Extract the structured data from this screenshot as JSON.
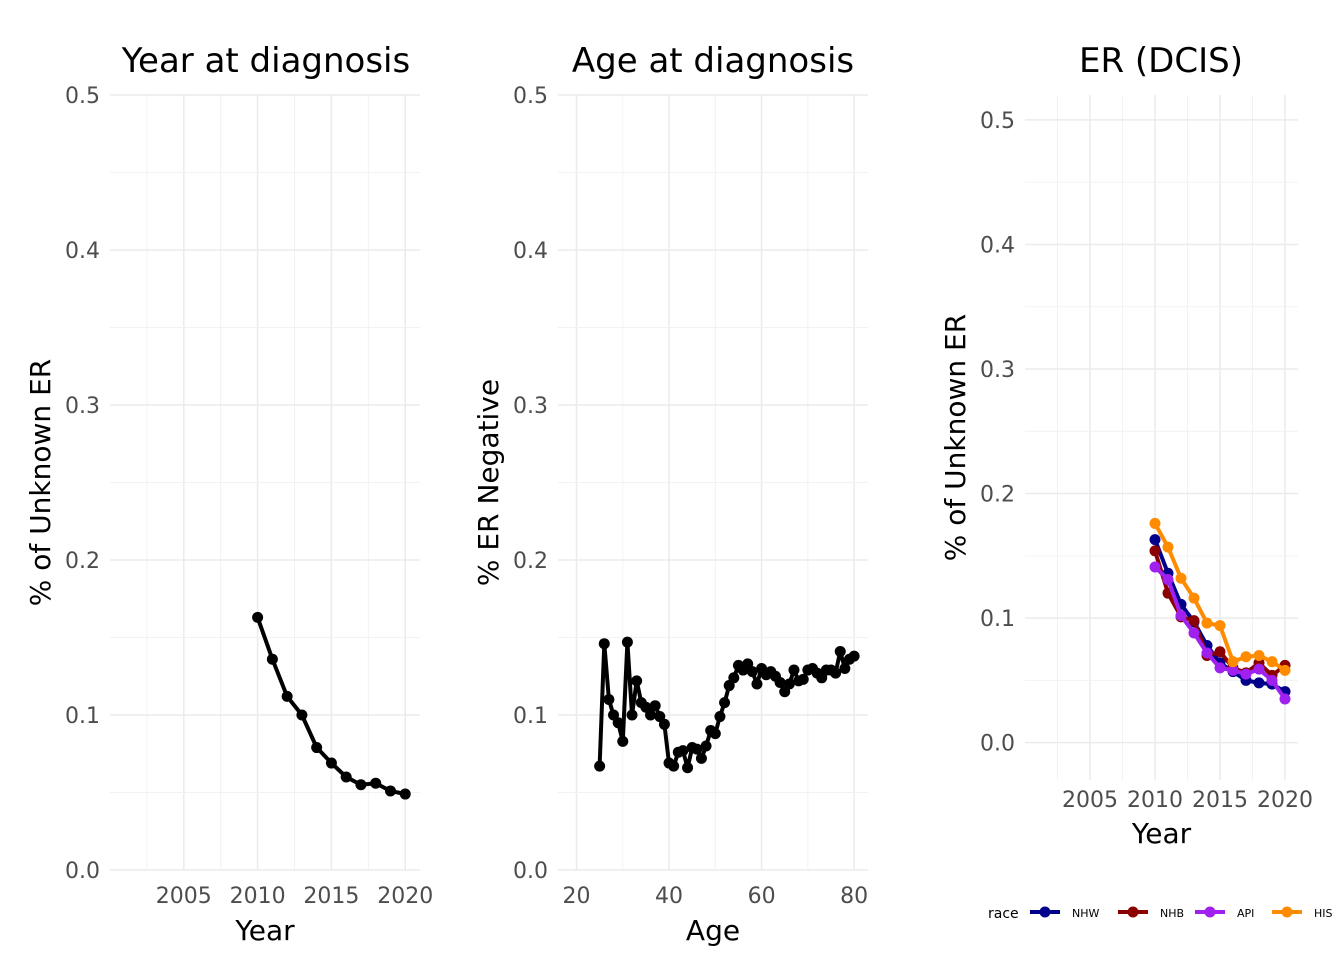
{
  "chart_data": [
    {
      "type": "line",
      "title": "Year at diagnosis",
      "xlabel": "Year",
      "ylabel": "% of Unknown ER",
      "xlim": [
        2000,
        2021
      ],
      "ylim": [
        0,
        0.5
      ],
      "xticks": [
        2005,
        2010,
        2015,
        2020
      ],
      "yticks": [
        0.0,
        0.1,
        0.2,
        0.3,
        0.4,
        0.5
      ],
      "ytick_labels": [
        "0.0",
        "0.1",
        "0.2",
        "0.3",
        "0.4",
        "0.5"
      ],
      "grid": true,
      "series": [
        {
          "color": "#000000",
          "x": [
            2010,
            2011,
            2012,
            2013,
            2014,
            2015,
            2016,
            2017,
            2018,
            2019,
            2020
          ],
          "y": [
            0.163,
            0.136,
            0.112,
            0.1,
            0.079,
            0.069,
            0.06,
            0.055,
            0.056,
            0.051,
            0.049
          ]
        }
      ]
    },
    {
      "type": "line",
      "title": "Age at diagnosis",
      "xlabel": "Age",
      "ylabel": "% ER Negative",
      "xlim": [
        16,
        83
      ],
      "ylim": [
        0,
        0.5
      ],
      "xticks": [
        20,
        40,
        60,
        80
      ],
      "yticks": [
        0.0,
        0.1,
        0.2,
        0.3,
        0.4,
        0.5
      ],
      "ytick_labels": [
        "0.0",
        "0.1",
        "0.2",
        "0.3",
        "0.4",
        "0.5"
      ],
      "grid": true,
      "series": [
        {
          "color": "#000000",
          "x": [
            25,
            26,
            27,
            28,
            29,
            30,
            31,
            32,
            33,
            34,
            35,
            36,
            37,
            38,
            39,
            40,
            41,
            42,
            43,
            44,
            45,
            46,
            47,
            48,
            49,
            50,
            51,
            52,
            53,
            54,
            55,
            56,
            57,
            58,
            59,
            60,
            61,
            62,
            63,
            64,
            65,
            66,
            67,
            68,
            69,
            70,
            71,
            72,
            73,
            74,
            75,
            76,
            77,
            78,
            79,
            80
          ],
          "y": [
            0.067,
            0.146,
            0.11,
            0.1,
            0.095,
            0.083,
            0.147,
            0.1,
            0.122,
            0.108,
            0.105,
            0.1,
            0.106,
            0.099,
            0.094,
            0.069,
            0.067,
            0.076,
            0.077,
            0.066,
            0.079,
            0.078,
            0.072,
            0.08,
            0.09,
            0.088,
            0.099,
            0.108,
            0.119,
            0.124,
            0.132,
            0.129,
            0.133,
            0.128,
            0.12,
            0.13,
            0.126,
            0.128,
            0.125,
            0.121,
            0.115,
            0.12,
            0.129,
            0.122,
            0.123,
            0.129,
            0.13,
            0.127,
            0.124,
            0.129,
            0.129,
            0.127,
            0.141,
            0.13,
            0.136,
            0.138
          ]
        }
      ]
    },
    {
      "type": "line",
      "title": "ER (DCIS)",
      "xlabel": "Year",
      "ylabel": "% of Unknown ER",
      "xlim": [
        2000,
        2021
      ],
      "ylim": [
        -0.03,
        0.52
      ],
      "xticks": [
        2005,
        2010,
        2015,
        2020
      ],
      "yticks": [
        0.0,
        0.1,
        0.2,
        0.3,
        0.4,
        0.5
      ],
      "ytick_labels": [
        "0.0",
        "0.1",
        "0.2",
        "0.3",
        "0.4",
        "0.5"
      ],
      "grid": true,
      "legend": {
        "title": "race",
        "position": "bottom"
      },
      "series": [
        {
          "name": "NHW",
          "color": "#00008b",
          "x": [
            2010,
            2011,
            2012,
            2013,
            2014,
            2015,
            2016,
            2017,
            2018,
            2019,
            2020
          ],
          "y": [
            0.163,
            0.136,
            0.111,
            0.097,
            0.078,
            0.064,
            0.057,
            0.05,
            0.048,
            0.047,
            0.041
          ]
        },
        {
          "name": "NHB",
          "color": "#8b0000",
          "x": [
            2010,
            2011,
            2012,
            2013,
            2014,
            2015,
            2016,
            2017,
            2018,
            2019,
            2020
          ],
          "y": [
            0.154,
            0.12,
            0.101,
            0.098,
            0.07,
            0.073,
            0.06,
            0.056,
            0.064,
            0.054,
            0.062
          ]
        },
        {
          "name": "API",
          "color": "#a020f0",
          "x": [
            2010,
            2011,
            2012,
            2013,
            2014,
            2015,
            2016,
            2017,
            2018,
            2019,
            2020
          ],
          "y": [
            0.141,
            0.131,
            0.102,
            0.088,
            0.072,
            0.06,
            0.058,
            0.055,
            0.059,
            0.05,
            0.035
          ]
        },
        {
          "name": "HIS",
          "color": "#ff8c00",
          "x": [
            2010,
            2011,
            2012,
            2013,
            2014,
            2015,
            2016,
            2017,
            2018,
            2019,
            2020
          ],
          "y": [
            0.176,
            0.157,
            0.132,
            0.116,
            0.096,
            0.094,
            0.065,
            0.069,
            0.07,
            0.065,
            0.058
          ]
        }
      ]
    }
  ]
}
